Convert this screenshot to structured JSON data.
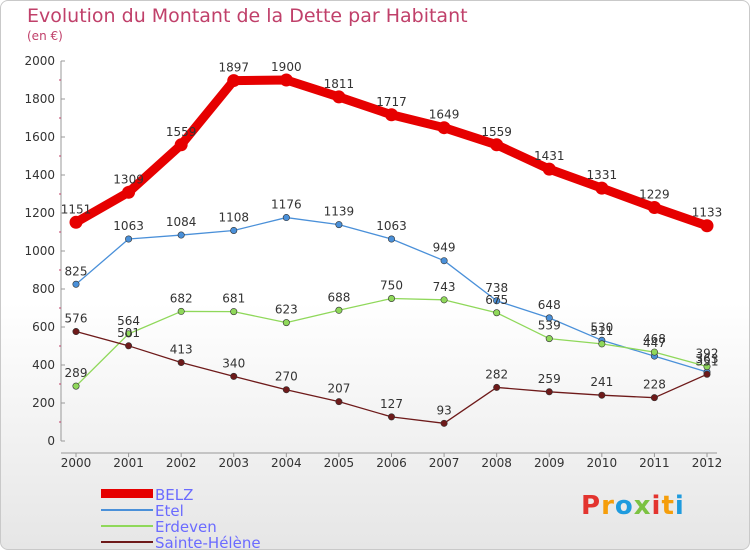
{
  "header": {
    "title": "Evolution du Montant de la Dette par Habitant",
    "subtitle": "(en €)"
  },
  "logo": {
    "text": "Proxiti",
    "colors": [
      "#e3342f",
      "#f59e0b",
      "#1f9bde",
      "#7cc242",
      "#e3342f",
      "#f59e0b",
      "#1f9bde"
    ]
  },
  "chart_data": {
    "type": "line",
    "title": "Evolution du Montant de la Dette par Habitant",
    "subtitle": "(en €)",
    "xlabel": "",
    "ylabel": "",
    "x": [
      "2000",
      "2001",
      "2002",
      "2003",
      "2004",
      "2005",
      "2006",
      "2007",
      "2008",
      "2009",
      "2010",
      "2011",
      "2012"
    ],
    "ylim": [
      0,
      2000
    ],
    "yticks": [
      0,
      200,
      400,
      600,
      800,
      1000,
      1200,
      1400,
      1600,
      1800,
      2000
    ],
    "grid": false,
    "legend_position": "bottom-left",
    "series": [
      {
        "name": "BELZ",
        "color": "#e60000",
        "emphasis": true,
        "values": [
          1151,
          1309,
          1559,
          1897,
          1900,
          1811,
          1717,
          1649,
          1559,
          1431,
          1331,
          1229,
          1133
        ]
      },
      {
        "name": "Etel",
        "color": "#4a90d9",
        "values": [
          825,
          1063,
          1084,
          1108,
          1176,
          1139,
          1063,
          949,
          738,
          648,
          530,
          447,
          363
        ]
      },
      {
        "name": "Erdeven",
        "color": "#8fd85a",
        "values": [
          289,
          564,
          682,
          681,
          623,
          688,
          750,
          743,
          675,
          539,
          511,
          468,
          392
        ]
      },
      {
        "name": "Sainte-Hélène",
        "color": "#6e1a1a",
        "values": [
          576,
          501,
          413,
          340,
          270,
          207,
          127,
          93,
          282,
          259,
          241,
          228,
          351
        ]
      }
    ]
  }
}
